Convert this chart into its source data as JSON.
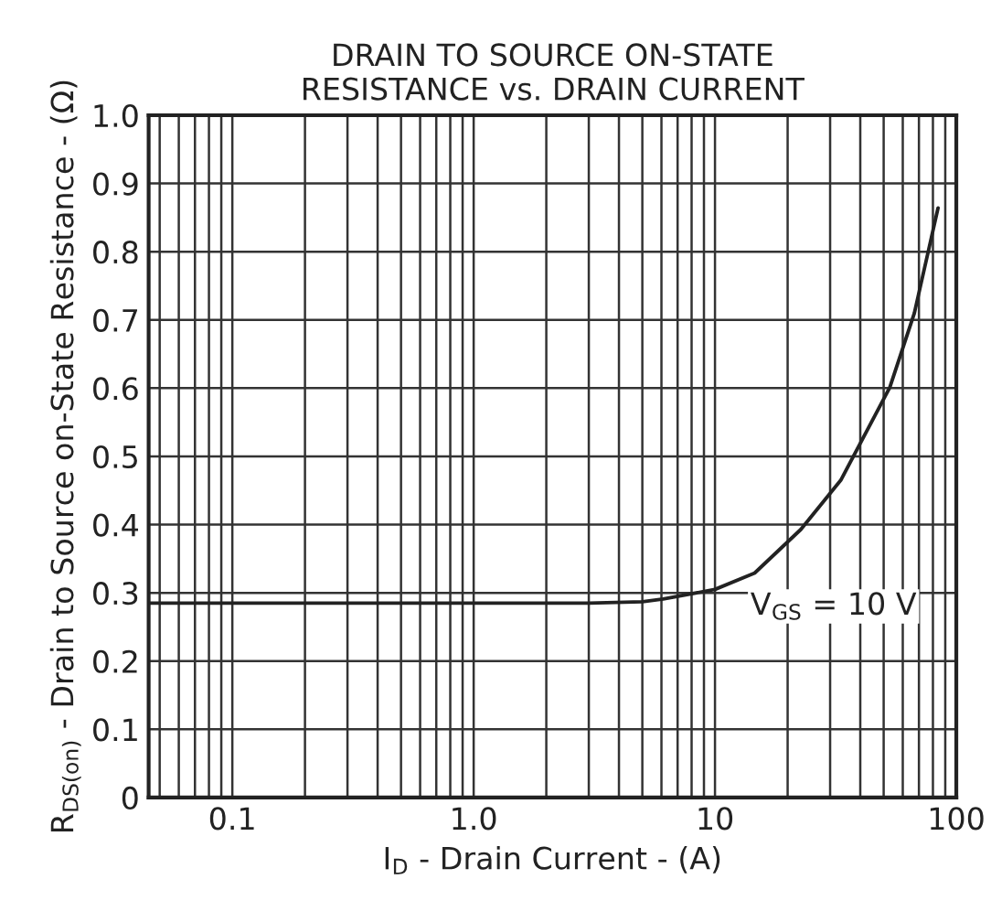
{
  "chart_data": {
    "type": "line",
    "title": "DRAIN TO SOURCE ON-STATE\nRESISTANCE vs. DRAIN CURRENT",
    "xlabel": "I$_{D}$ - Drain Current - (A)",
    "ylabel": "R$_{DS(on)}$ - Drain to Source on-State Resistance - (Ω)",
    "series": [
      {
        "color": "#222222",
        "x": [
          0.045,
          0.1,
          1,
          3,
          5,
          6.1,
          10,
          14.6,
          22.7,
          33.2,
          53,
          67,
          84
        ],
        "values": [
          0.285,
          0.285,
          0.285,
          0.285,
          0.287,
          0.291,
          0.305,
          0.329,
          0.393,
          0.465,
          0.601,
          0.71,
          0.864
        ]
      }
    ],
    "annotations": [
      "V$_{GS}$ = 10 V"
    ],
    "log": "x",
    "xlim": [
      0.045,
      100
    ],
    "xticks": [
      0.1,
      {
        "value": 1,
        "label": "1.0"
      },
      10,
      100
    ],
    "ylim": [
      0,
      1
    ],
    "yticks": [
      0,
      0.1,
      0.2,
      0.3,
      0.4,
      0.5,
      0.6,
      0.7,
      0.8,
      0.9,
      {
        "value": 1,
        "label": "1.0"
      }
    ],
    "grid": true,
    "legend": false,
    "marker": "none",
    "line_style": "solid"
  }
}
